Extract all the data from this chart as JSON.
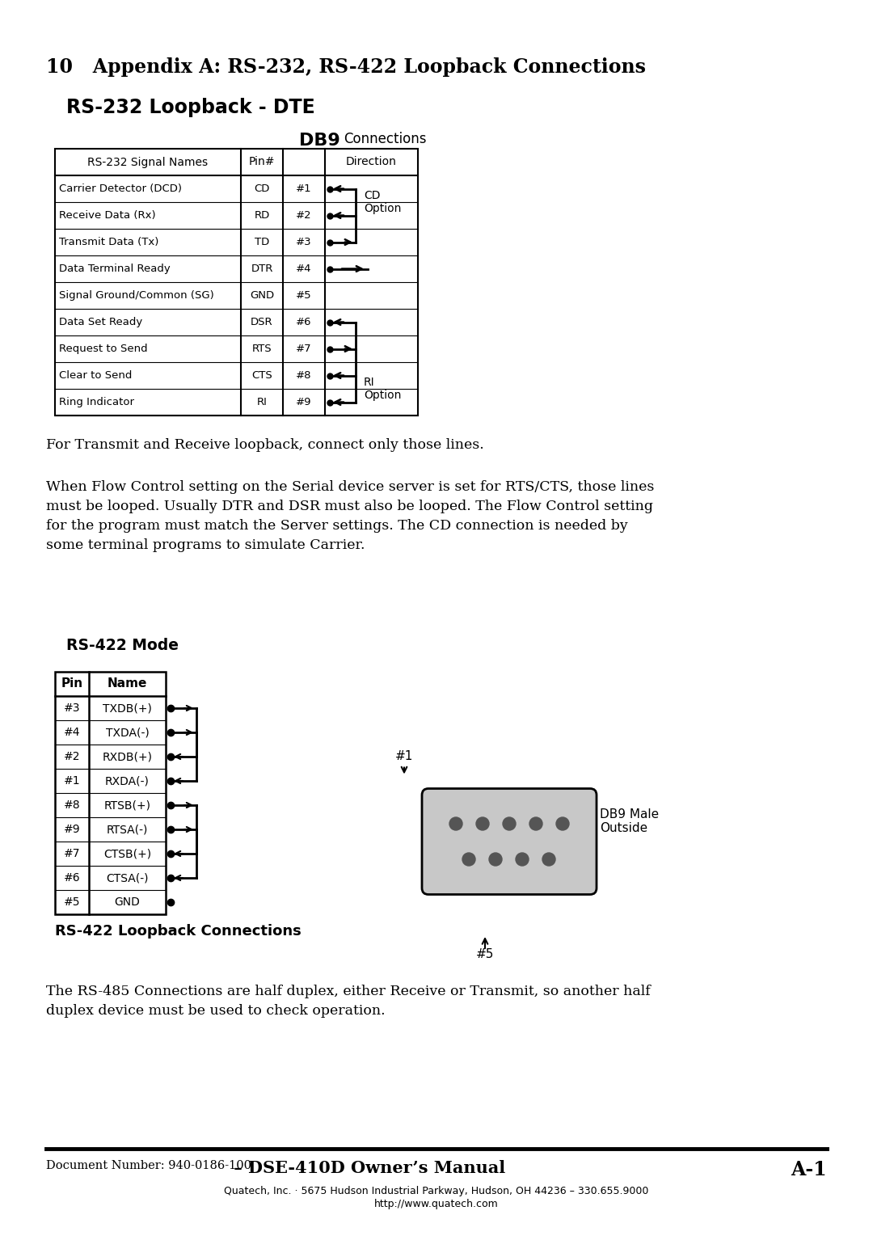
{
  "page_title": "10   Appendix A: RS-232, RS-422 Loopback Connections",
  "section1_title": "RS-232 Loopback - DTE",
  "db9_label": "DB9",
  "connections_label": "Connections",
  "table_rows": [
    [
      "Carrier Detector (DCD)",
      "CD",
      "#1"
    ],
    [
      "Receive Data (Rx)",
      "RD",
      "#2"
    ],
    [
      "Transmit Data (Tx)",
      "TD",
      "#3"
    ],
    [
      "Data Terminal Ready",
      "DTR",
      "#4"
    ],
    [
      "Signal Ground/Common (SG)",
      "GND",
      "#5"
    ],
    [
      "Data Set Ready",
      "DSR",
      "#6"
    ],
    [
      "Request to Send",
      "RTS",
      "#7"
    ],
    [
      "Clear to Send",
      "CTS",
      "#8"
    ],
    [
      "Ring Indicator",
      "RI",
      "#9"
    ]
  ],
  "cd_option_label": "CD\nOption",
  "ri_option_label": "RI\nOption",
  "para1": "For Transmit and Receive loopback, connect only those lines.",
  "para2": "When Flow Control setting on the Serial device server is set for RTS/CTS, those lines\nmust be looped. Usually DTR and DSR must also be looped. The Flow Control setting\nfor the program must match the Server settings. The CD connection is needed by\nsome terminal programs to simulate Carrier.",
  "section2_title": "RS-422 Mode",
  "rs422_rows": [
    [
      "#3",
      "TXDB(+)"
    ],
    [
      "#4",
      "TXDA(-)"
    ],
    [
      "#2",
      "RXDB(+)"
    ],
    [
      "#1",
      "RXDA(-)"
    ],
    [
      "#8",
      "RTSB(+)"
    ],
    [
      "#9",
      "RTSA(-)"
    ],
    [
      "#7",
      "CTSB(+)"
    ],
    [
      "#6",
      "CTSA(-)"
    ],
    [
      "#5",
      "GND"
    ]
  ],
  "rs422_loopback_label": "RS-422 Loopback Connections",
  "db9_male_label": "DB9 Male\nOutside",
  "db9_pin1_label": "#1",
  "db9_pin5_label": "#5",
  "para3": "The RS-485 Connections are half duplex, either Receive or Transmit, so another half\nduplex device must be used to check operation.",
  "footer_left_small": "Document Number: 940-0186-100",
  "footer_left_large": " – DSE-410D Owner’s Manual",
  "footer_right": "A-1",
  "footer_line2": "Quatech, Inc. · 5675 Hudson Industrial Parkway, Hudson, OH 44236 – 330.655.9000",
  "footer_line3": "http://www.quatech.com",
  "bg_color": "#ffffff"
}
